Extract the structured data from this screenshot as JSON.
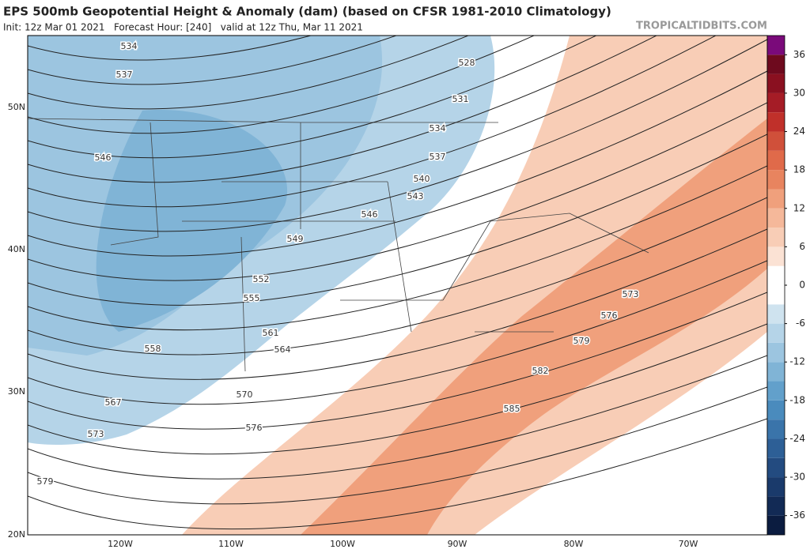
{
  "header": {
    "title": "EPS 500mb Geopotential Height & Anomaly (dam) (based on CFSR 1981-2010 Climatology)",
    "subtitle": "Init: 12z Mar 01 2021   Forecast Hour: [240]   valid at 12z Thu, Mar 11 2021",
    "site": "TROPICALTIDBITS.COM"
  },
  "map": {
    "contour_labels": [
      534,
      537,
      528,
      531,
      534,
      537,
      540,
      543,
      546,
      546,
      549,
      552,
      555,
      558,
      561,
      564,
      567,
      570,
      573,
      573,
      576,
      576,
      579,
      579,
      582,
      585
    ],
    "lat_labels": [
      "50N",
      "40N",
      "30N",
      "20N"
    ],
    "lon_labels": [
      "120W",
      "110W",
      "100W",
      "90W",
      "80W",
      "70W"
    ]
  },
  "colorbar": {
    "lim": [
      -39,
      39
    ],
    "ticks": [
      36,
      30,
      24,
      18,
      12,
      6,
      0,
      -6,
      -12,
      -18,
      -24,
      -30,
      -36
    ],
    "colors": [
      "#0b1c40",
      "#122a55",
      "#1a3a6b",
      "#234b80",
      "#2d5f96",
      "#3a74aa",
      "#4a8bbd",
      "#62a0cb",
      "#80b4d6",
      "#9cc5e0",
      "#b5d4e8",
      "#cfe3ef",
      "#ffffff",
      "#ffffff",
      "#fbe2d4",
      "#f8cdb6",
      "#f5b89a",
      "#f0a07c",
      "#e8845f",
      "#e06a4a",
      "#d0503a",
      "#c0302a",
      "#a51c26",
      "#8a1020",
      "#6e0a1e",
      "#7a0a7a"
    ]
  }
}
